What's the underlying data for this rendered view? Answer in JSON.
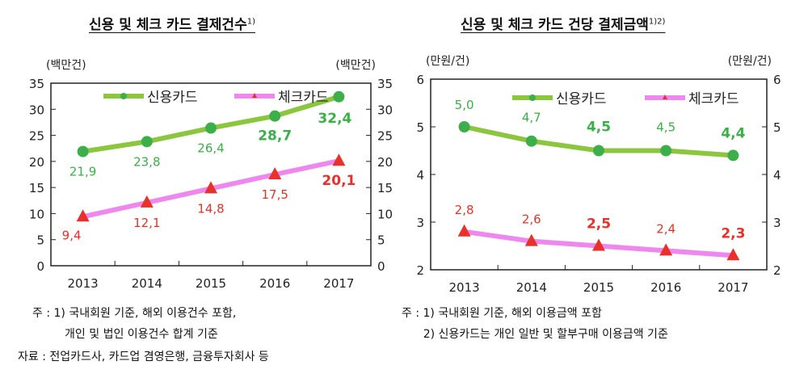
{
  "chart_data": [
    {
      "type": "line",
      "title": "신용 및 체크 카드 결제건수",
      "title_sup": "1)",
      "ylabel_left": "(백만건)",
      "ylabel_right": "(백만건)",
      "ylim": [
        0,
        35
      ],
      "yticks": [
        0,
        5,
        10,
        15,
        20,
        25,
        30,
        35
      ],
      "categories": [
        "2013",
        "2014",
        "2015",
        "2016",
        "2017"
      ],
      "legend_position": "top",
      "series": [
        {
          "name": "신용카드",
          "color": "#8cc63f",
          "marker": "circle",
          "marker_color": "#3cae4a",
          "label_color": "#3cae4a",
          "values": [
            21.9,
            23.8,
            26.4,
            28.7,
            32.4
          ],
          "labels": [
            "21,9",
            "23,8",
            "26,4",
            "28,7",
            "32,4"
          ],
          "bold": [
            false,
            false,
            false,
            true,
            true
          ]
        },
        {
          "name": "체크카드",
          "color": "#ee88ee",
          "marker": "triangle",
          "marker_color": "#e8312a",
          "label_color": "#e8312a",
          "values": [
            9.4,
            12.1,
            14.8,
            17.5,
            20.1
          ],
          "labels": [
            "9,4",
            "12,1",
            "14,8",
            "17,5",
            "20,1"
          ],
          "bold": [
            false,
            false,
            false,
            false,
            true
          ]
        }
      ],
      "notes": [
        "주 : 1) 국내회원 기준, 해외 이용건수 포함,",
        "         개인 및 법인 이용건수 합계 기준",
        "자료 : 전업카드사, 카드업 겸영은행, 금융투자회사 등"
      ]
    },
    {
      "type": "line",
      "title": "신용 및 체크 카드 건당 결제금액",
      "title_sup": "1)2)",
      "ylabel_left": "(만원/건)",
      "ylabel_right": "(만원/건)",
      "ylim": [
        2,
        6
      ],
      "yticks": [
        2,
        3,
        4,
        5,
        6
      ],
      "categories": [
        "2013",
        "2014",
        "2015",
        "2016",
        "2017"
      ],
      "legend_position": "top",
      "series": [
        {
          "name": "신용카드",
          "color": "#8cc63f",
          "marker": "circle",
          "marker_color": "#3cae4a",
          "label_color": "#3cae4a",
          "values": [
            5.0,
            4.7,
            4.5,
            4.5,
            4.4
          ],
          "labels": [
            "5,0",
            "4,7",
            "4,5",
            "4,5",
            "4,4"
          ],
          "bold": [
            false,
            false,
            true,
            false,
            true
          ]
        },
        {
          "name": "체크카드",
          "color": "#ee88ee",
          "marker": "triangle",
          "marker_color": "#e8312a",
          "label_color": "#e8312a",
          "values": [
            2.8,
            2.6,
            2.5,
            2.4,
            2.3
          ],
          "labels": [
            "2,8",
            "2,6",
            "2,5",
            "2,4",
            "2,3"
          ],
          "bold": [
            false,
            false,
            true,
            false,
            true
          ]
        }
      ],
      "notes": [
        "주 : 1) 국내회원 기준, 해외 이용금액 포함",
        "      2) 신용카드는 개인 일반 및 할부구매 이용금액 기준"
      ]
    }
  ]
}
